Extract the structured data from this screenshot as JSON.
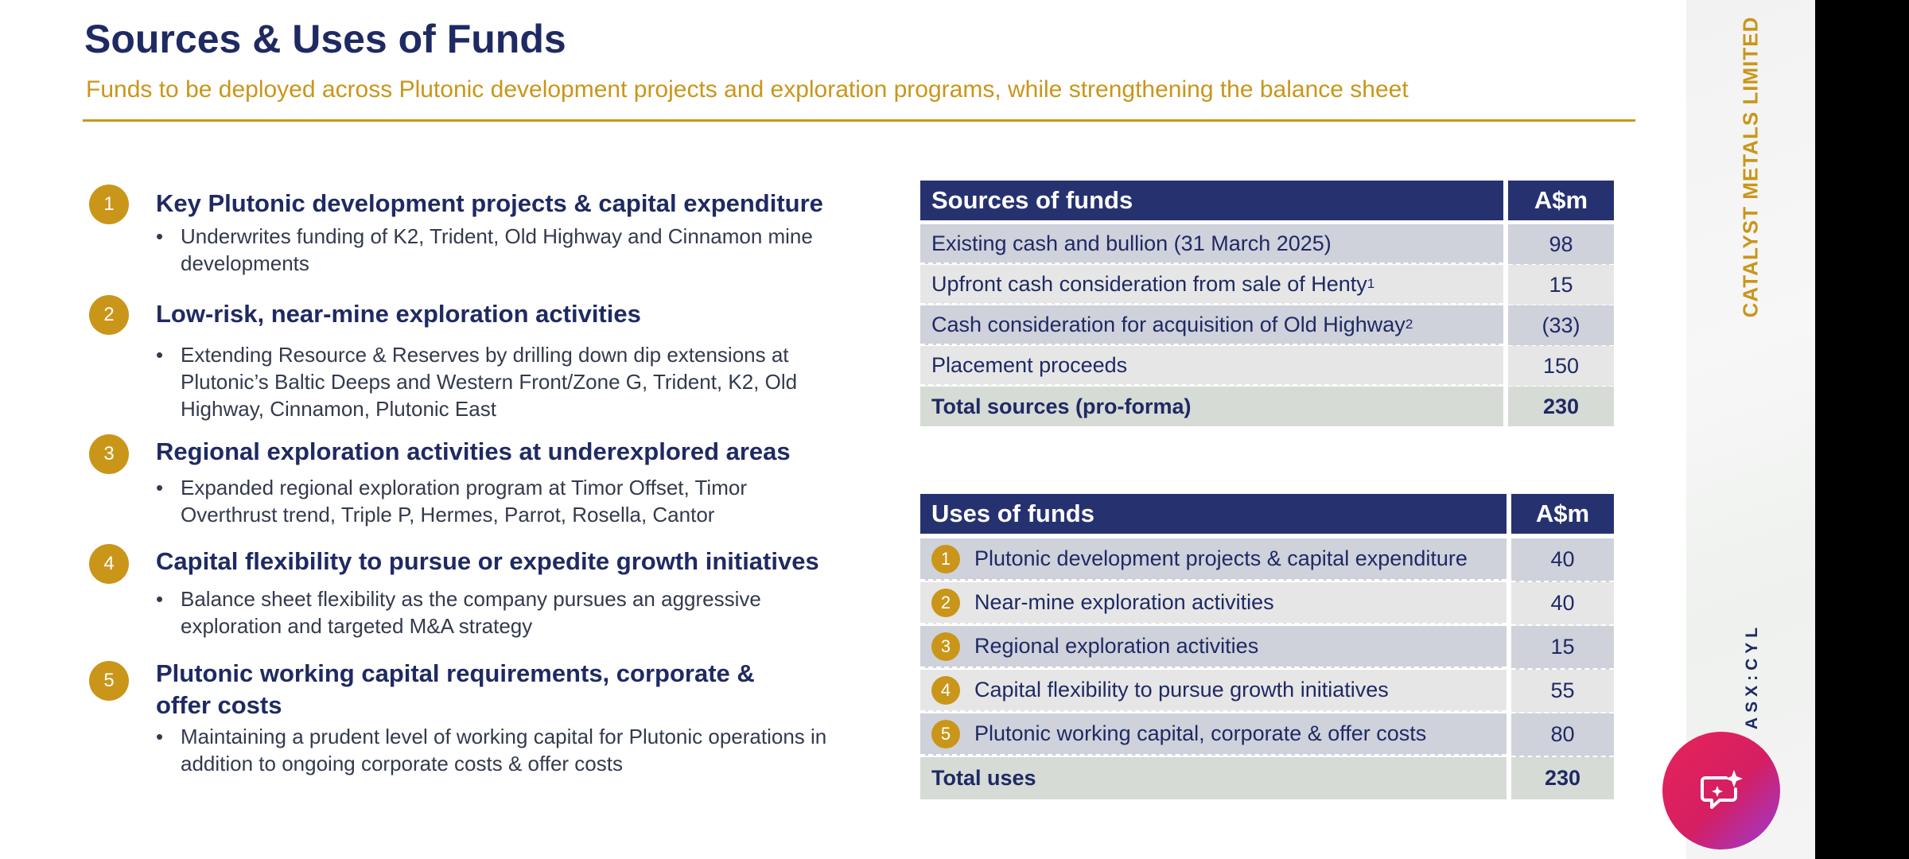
{
  "slide": {
    "title": "Sources & Uses of Funds",
    "subtitle": "Funds to be deployed across Plutonic development projects and exploration programs, while strengthening the balance sheet"
  },
  "items": [
    {
      "num": "1",
      "heading": "Key Plutonic development projects & capital expenditure",
      "bullet": "Underwrites funding of K2,  Trident, Old Highway and Cinnamon mine developments"
    },
    {
      "num": "2",
      "heading": "Low-risk, near-mine exploration activities",
      "bullet": "Extending Resource & Reserves by drilling down dip extensions at Plutonic’s Baltic Deeps and Western Front/Zone G, Trident, K2, Old Highway, Cinnamon, Plutonic East"
    },
    {
      "num": "3",
      "heading": "Regional exploration activities at underexplored areas",
      "bullet": "Expanded regional exploration program at Timor Offset, Timor Overthrust trend, Triple P, Hermes, Parrot, Rosella, Cantor"
    },
    {
      "num": "4",
      "heading": "Capital flexibility to pursue or expedite growth initiatives",
      "bullet": "Balance sheet flexibility as the company pursues an aggressive exploration and targeted M&A strategy"
    },
    {
      "num": "5",
      "heading": "Plutonic working capital requirements, corporate & offer costs",
      "bullet": "Maintaining a prudent level of working capital for Plutonic operations in addition to ongoing corporate costs & offer costs"
    }
  ],
  "sources": {
    "header": "Sources of funds",
    "unit": "A$m",
    "rows": [
      {
        "label": "Existing cash and bullion (31 March 2025)",
        "sup": "",
        "value": "98"
      },
      {
        "label": "Upfront cash consideration from sale of Henty",
        "sup": "1",
        "value": "15"
      },
      {
        "label": "Cash consideration for acquisition of Old Highway",
        "sup": "2",
        "value": "(33)"
      },
      {
        "label": "Placement proceeds",
        "sup": "",
        "value": "150"
      }
    ],
    "total_label": "Total sources (pro-forma)",
    "total_value": "230"
  },
  "uses": {
    "header": "Uses of funds",
    "unit": "A$m",
    "rows": [
      {
        "num": "1",
        "label": "Plutonic development projects & capital expenditure",
        "value": "40"
      },
      {
        "num": "2",
        "label": "Near-mine exploration activities",
        "value": "40"
      },
      {
        "num": "3",
        "label": "Regional exploration activities",
        "value": "15"
      },
      {
        "num": "4",
        "label": "Capital flexibility to pursue growth initiatives",
        "value": "55"
      },
      {
        "num": "5",
        "label": "Plutonic working capital, corporate & offer costs",
        "value": "80"
      }
    ],
    "total_label": "Total uses",
    "total_value": "230"
  },
  "sidebar": {
    "company": "CATALYST METALS LIMITED",
    "ticker": "ASX:CYL"
  },
  "fab": {
    "icon": "chat-sparkle-icon"
  },
  "colors": {
    "navy": "#263270",
    "gold": "#c9961a",
    "fab": "#e8235a"
  }
}
